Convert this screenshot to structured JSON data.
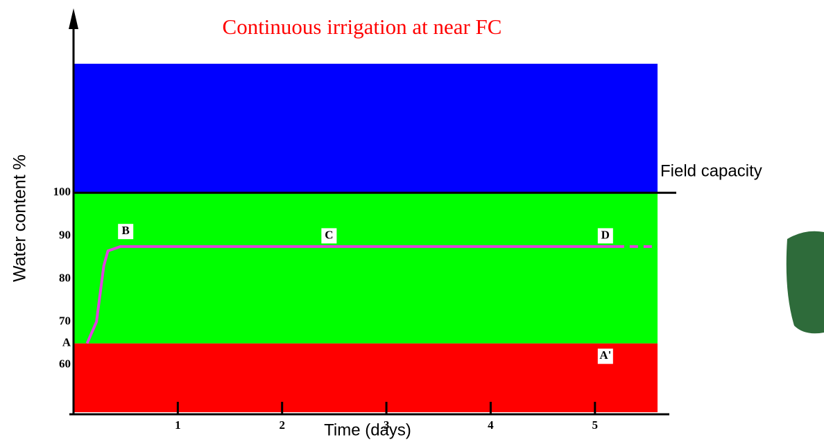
{
  "chart_data": {
    "type": "line",
    "title": "Continuous irrigation at near FC",
    "x_label": "Time (days)",
    "y_label": "Water content %",
    "xlim": [
      0,
      5.6
    ],
    "ylim": [
      49,
      130
    ],
    "xticks": [
      1,
      2,
      3,
      4,
      5
    ],
    "yticks": [
      {
        "value": 65,
        "label": "A"
      },
      60,
      70,
      80,
      90,
      100
    ],
    "bands": [
      {
        "from": 49,
        "to": 65,
        "color": "#ff0000"
      },
      {
        "from": 65,
        "to": 100,
        "color": "#00ff00"
      },
      {
        "from": 100,
        "to": 130,
        "color": "#0000ff"
      }
    ],
    "field_capacity": {
      "value": 100,
      "label": "Field capacity"
    },
    "series": [
      {
        "color": "#e040e0",
        "x": [
          0.13,
          0.22,
          0.29,
          0.33,
          0.45,
          5.2
        ],
        "values": [
          65,
          70,
          83,
          86.5,
          87.5,
          87.5
        ]
      },
      {
        "color": "#e040e0",
        "dashed": true,
        "x": [
          5.2,
          5.6
        ],
        "values": [
          87.5,
          87.5
        ]
      }
    ],
    "annotations": [
      {
        "text": "B",
        "x": 0.5,
        "y": 91
      },
      {
        "text": "C",
        "x": 2.45,
        "y": 90
      },
      {
        "text": "D",
        "x": 5.1,
        "y": 90
      },
      {
        "text": "A'",
        "x": 5.1,
        "y": 62
      }
    ]
  }
}
